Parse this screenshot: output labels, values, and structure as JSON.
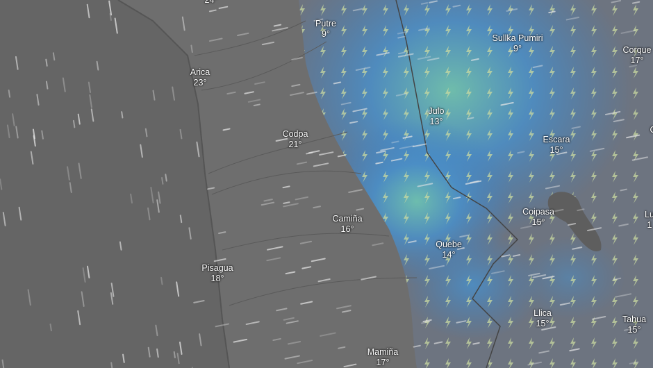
{
  "map": {
    "overlay": "thunderstorm",
    "colors": {
      "ocean": "#646464",
      "land": "#6e6e6e",
      "precip_blue": "#3f7fc0",
      "precip_cyan": "#5fb3b8",
      "lightning_icon": "#c9d9a0"
    },
    "icons": {
      "lightning": "lightning-bolt-icon",
      "wind": "wind-streak"
    },
    "places": [
      {
        "name": "",
        "temp": "24°"
      },
      {
        "name": "Putre",
        "temp": "9°"
      },
      {
        "name": "Sullka Pumiri",
        "temp": "9°"
      },
      {
        "name": "Corque",
        "temp": "17°"
      },
      {
        "name": "Arica",
        "temp": "23°"
      },
      {
        "name": "Julo",
        "temp": "13°"
      },
      {
        "name": "Codpa",
        "temp": "21°"
      },
      {
        "name": "Escara",
        "temp": "15°"
      },
      {
        "name": "Coipasa",
        "temp": "15°"
      },
      {
        "name": "Camiña",
        "temp": "16°"
      },
      {
        "name": "Quebe",
        "temp": "14°"
      },
      {
        "name": "Pisagua",
        "temp": "18°"
      },
      {
        "name": "Llica",
        "temp": "15°"
      },
      {
        "name": "Tahua",
        "temp": "15°"
      },
      {
        "name": "Mamiña",
        "temp": "17°"
      },
      {
        "name": "C",
        "temp": ""
      },
      {
        "name": "Lu",
        "temp": "1"
      }
    ]
  }
}
